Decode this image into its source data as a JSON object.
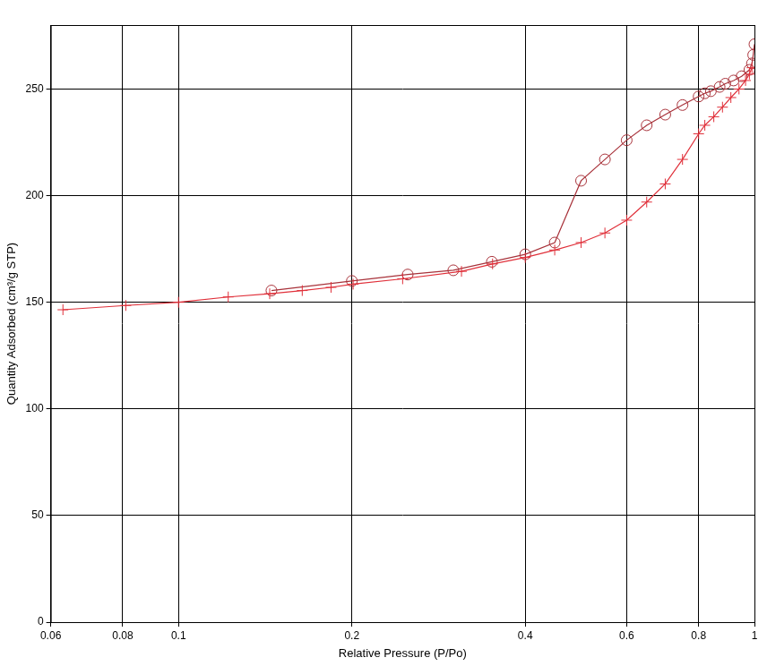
{
  "chart_data": {
    "type": "line",
    "x_label": "Relative Pressure (P/Po)",
    "y_label": "Quantity Adsorbed (cm³/g STP)",
    "log": "x",
    "grid": true,
    "xlim": [
      0.06,
      1
    ],
    "xticks": [
      0.06,
      0.08,
      0.1,
      0.2,
      0.4,
      0.6,
      0.8,
      1
    ],
    "ylim": [
      0,
      280
    ],
    "yticks": [
      0,
      50,
      100,
      150,
      200,
      250
    ],
    "series": [
      {
        "color": "#e0303a",
        "marker": "cross",
        "line_style": "solid",
        "x": [
          0.063,
          0.081,
          0.1,
          0.122,
          0.144,
          0.164,
          0.184,
          0.201,
          0.245,
          0.31,
          0.351,
          0.4,
          0.45,
          0.5,
          0.55,
          0.6,
          0.65,
          0.7,
          0.75,
          0.8,
          0.82,
          0.85,
          0.88,
          0.91,
          0.94,
          0.965,
          0.98,
          0.99
        ],
        "values": [
          146.5,
          148.5,
          150,
          152.5,
          154,
          155.5,
          157,
          158.5,
          161,
          164.5,
          168,
          171,
          174.5,
          178,
          182.5,
          188.5,
          197,
          205.5,
          217,
          229,
          233,
          237,
          241.5,
          246,
          250,
          254,
          257,
          260
        ]
      },
      {
        "color": "#a8323a",
        "marker": "circle",
        "line_style": "solid",
        "x": [
          1.0,
          0.995,
          0.99,
          0.98,
          0.95,
          0.92,
          0.89,
          0.87,
          0.84,
          0.82,
          0.8,
          0.75,
          0.7,
          0.65,
          0.6,
          0.55,
          0.5,
          0.45,
          0.4,
          0.35,
          0.3,
          0.25,
          0.2,
          0.145
        ],
        "values": [
          271,
          266,
          262,
          259,
          256,
          254,
          252.5,
          251,
          249,
          248,
          246.5,
          242.5,
          238,
          233,
          226,
          217,
          207,
          178,
          172.5,
          169,
          165,
          163,
          160,
          155.5
        ]
      }
    ]
  }
}
